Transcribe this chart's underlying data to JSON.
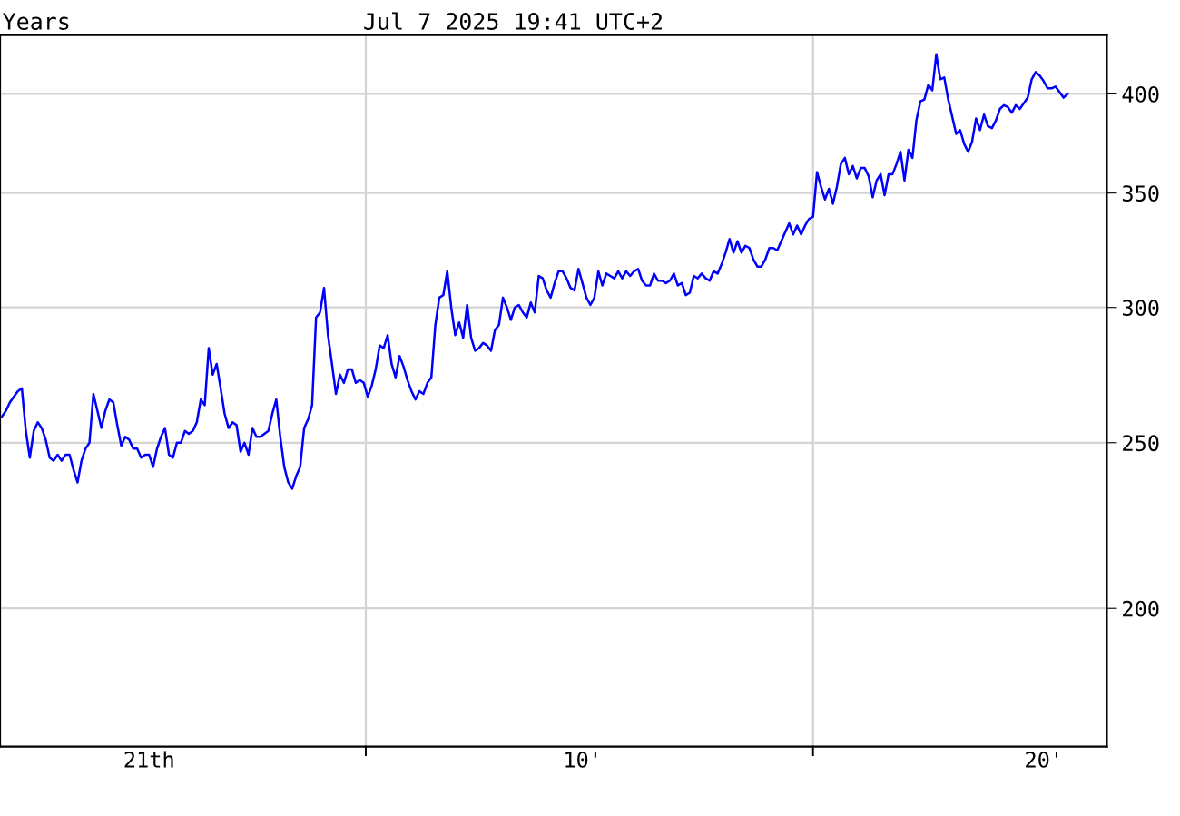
{
  "chart_data": {
    "type": "line",
    "title": "Jul 7 2025 19:41 UTC+2",
    "annotations": [
      "Years"
    ],
    "log": "y",
    "grid": true,
    "marker": "none",
    "line_style": "solid",
    "ylim": [
      166,
      433
    ],
    "yticks": [
      200,
      250,
      300,
      350,
      400
    ],
    "categories": [
      null,
      null,
      null,
      null,
      null,
      null,
      null,
      null,
      null,
      null,
      null,
      null,
      null,
      null,
      null,
      null,
      null,
      null,
      null,
      null,
      null,
      null,
      null,
      null,
      null,
      null,
      null,
      null,
      null,
      null,
      null,
      null,
      null,
      null,
      null,
      null,
      null,
      "21th",
      null,
      null,
      null,
      null,
      null,
      null,
      null,
      null,
      null,
      null,
      null,
      null,
      null,
      null,
      null,
      null,
      null,
      null,
      null,
      null,
      null,
      null,
      null,
      null,
      null,
      null,
      null,
      null,
      null,
      null,
      null,
      null,
      null,
      null,
      null,
      null,
      null,
      null,
      null,
      null,
      null,
      null,
      null,
      null,
      null,
      null,
      null,
      null,
      null,
      null,
      null,
      null,
      null,
      null,
      null,
      null,
      null,
      null,
      null,
      null,
      null,
      null,
      null,
      null,
      null,
      null,
      null,
      null,
      null,
      null,
      null,
      null,
      null,
      null,
      null,
      null,
      null,
      null,
      null,
      null,
      null,
      null,
      null,
      null,
      null,
      null,
      null,
      null,
      null,
      null,
      null,
      null,
      null,
      null,
      null,
      null,
      null,
      null,
      null,
      null,
      null,
      null,
      null,
      null,
      null,
      null,
      null,
      null,
      "10'",
      null,
      null,
      null,
      null,
      null,
      null,
      null,
      null,
      null,
      null,
      null,
      null,
      null,
      null,
      null,
      null,
      null,
      null,
      null,
      null,
      null,
      null,
      null,
      null,
      null,
      null,
      null,
      null,
      null,
      null,
      null,
      null,
      null,
      null,
      null,
      null,
      null,
      null,
      null,
      null,
      null,
      null,
      null,
      null,
      null,
      null,
      null,
      null,
      null,
      null,
      null,
      null,
      null,
      null,
      null,
      null,
      null,
      null,
      null,
      null,
      null,
      null,
      null,
      null,
      null,
      null,
      null,
      null,
      null,
      null,
      null,
      null,
      null,
      null,
      null,
      null,
      null,
      null,
      null,
      null,
      null,
      null,
      null,
      null,
      null,
      null,
      null,
      null,
      null,
      null,
      null,
      null,
      null,
      null,
      null,
      null,
      null,
      null,
      null,
      null,
      null,
      null,
      null,
      null,
      null,
      null,
      null,
      null,
      null,
      null,
      null,
      null,
      null,
      null,
      null,
      "20'",
      null,
      null,
      null,
      null,
      null,
      null
    ],
    "series": [
      {
        "color": "#0000ff",
        "values": [
          259,
          261,
          264,
          266,
          268,
          269,
          254,
          245,
          254,
          257,
          255,
          251,
          245,
          244,
          246,
          244,
          246,
          246,
          241,
          237,
          244,
          248,
          250,
          267,
          261,
          255,
          261,
          265,
          264,
          256,
          249,
          252,
          251,
          248,
          248,
          245,
          246,
          246,
          242,
          248,
          252,
          255,
          246,
          245,
          250,
          250,
          254,
          253,
          254,
          257,
          265,
          263,
          284,
          274,
          278,
          269,
          260,
          255,
          257,
          256,
          247,
          250,
          246,
          255,
          252,
          252,
          253,
          254,
          260,
          265,
          252,
          242,
          237,
          235,
          239,
          242,
          255,
          258,
          263,
          296,
          298,
          308,
          289,
          278,
          267,
          274,
          271,
          276,
          276,
          271,
          272,
          271,
          266,
          270,
          276,
          285,
          284,
          289,
          278,
          273,
          281,
          277,
          272,
          268,
          265,
          268,
          267,
          271,
          273,
          293,
          304,
          305,
          315,
          300,
          289,
          294,
          288,
          301,
          288,
          283,
          284,
          286,
          285,
          283,
          291,
          293,
          304,
          300,
          295,
          300,
          301,
          298,
          296,
          302,
          298,
          313,
          312,
          307,
          304,
          310,
          315,
          315,
          312,
          308,
          307,
          316,
          310,
          304,
          301,
          304,
          315,
          309,
          314,
          313,
          312,
          315,
          312,
          315,
          313,
          315,
          316,
          311,
          309,
          309,
          314,
          311,
          311,
          310,
          311,
          314,
          309,
          310,
          305,
          306,
          313,
          312,
          314,
          312,
          311,
          315,
          314,
          318,
          323,
          329,
          323,
          328,
          323,
          326,
          325,
          320,
          317,
          317,
          320,
          325,
          325,
          324,
          328,
          332,
          336,
          331,
          335,
          331,
          335,
          338,
          339,
          360,
          353,
          347,
          352,
          345,
          353,
          364,
          367,
          359,
          363,
          357,
          362,
          362,
          358,
          348,
          356,
          359,
          349,
          359,
          359,
          364,
          370,
          356,
          371,
          367,
          386,
          396,
          397,
          405,
          402,
          422,
          408,
          409,
          397,
          388,
          379,
          381,
          374,
          370,
          375,
          387,
          381,
          389,
          383,
          382,
          386,
          392,
          394,
          393,
          390,
          394,
          392,
          395,
          398,
          408,
          412,
          410,
          407,
          403,
          403,
          404,
          401,
          398,
          400
        ]
      }
    ]
  }
}
